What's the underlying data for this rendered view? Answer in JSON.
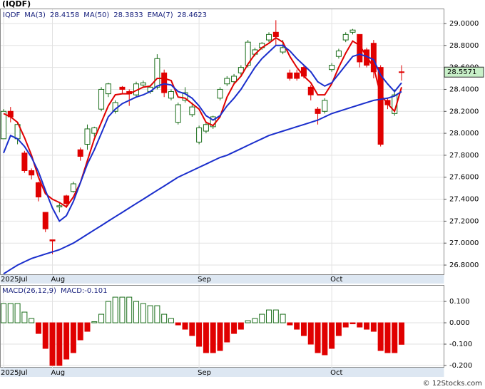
{
  "chart_data": [
    {
      "type": "candlestick",
      "title": "(IQDF)",
      "symbol": "IQDF",
      "legend": [
        {
          "name": "MA(3)",
          "value": "28.4158"
        },
        {
          "name": "MA(50)",
          "value": "28.3833"
        },
        {
          "name": "EMA(7)",
          "value": "28.4623"
        }
      ],
      "last_label": "28.5571",
      "categories": [
        "2025Jul",
        null,
        null,
        null,
        null,
        null,
        null,
        "Aug",
        null,
        null,
        null,
        null,
        null,
        null,
        null,
        null,
        null,
        null,
        null,
        null,
        null,
        null,
        null,
        null,
        null,
        null,
        null,
        null,
        "Sep",
        null,
        null,
        null,
        null,
        null,
        null,
        null,
        null,
        null,
        null,
        null,
        null,
        null,
        null,
        null,
        null,
        null,
        null,
        "Oct",
        null,
        null,
        null,
        null,
        null,
        null,
        null,
        null,
        null,
        null
      ],
      "open": [
        27.95,
        28.2,
        27.95,
        27.82,
        27.66,
        27.55,
        27.28,
        27.03,
        27.33,
        27.43,
        27.47,
        27.85,
        27.9,
        28.0,
        28.22,
        28.36,
        28.2,
        28.42,
        28.38,
        28.35,
        28.44,
        28.38,
        28.42,
        28.55,
        28.32,
        28.1,
        28.3,
        28.17,
        27.92,
        28.02,
        28.06,
        28.32,
        28.45,
        28.47,
        28.55,
        28.62,
        28.72,
        28.78,
        28.85,
        28.92,
        28.74,
        28.55,
        28.55,
        28.6,
        28.42,
        28.22,
        28.2,
        28.58,
        28.7,
        28.85,
        28.92,
        28.9,
        28.76,
        28.82,
        28.6,
        28.3,
        28.18,
        28.56
      ],
      "high": [
        28.22,
        28.24,
        28.1,
        27.84,
        27.68,
        27.56,
        27.28,
        27.03,
        27.37,
        27.44,
        27.56,
        27.87,
        28.08,
        28.06,
        28.42,
        28.46,
        28.3,
        28.43,
        28.4,
        28.47,
        28.48,
        28.44,
        28.72,
        28.58,
        28.4,
        28.28,
        28.42,
        28.28,
        28.07,
        28.1,
        28.16,
        28.42,
        28.52,
        28.54,
        28.62,
        28.85,
        28.78,
        28.83,
        28.92,
        29.03,
        28.85,
        28.58,
        28.58,
        28.62,
        28.44,
        28.24,
        28.32,
        28.64,
        28.77,
        28.92,
        28.95,
        28.9,
        28.78,
        28.85,
        28.62,
        28.32,
        28.4,
        28.62
      ],
      "low": [
        27.95,
        28.1,
        27.9,
        27.64,
        27.58,
        27.38,
        27.1,
        26.9,
        27.28,
        27.32,
        27.46,
        27.75,
        27.85,
        27.97,
        28.2,
        28.33,
        28.18,
        28.36,
        28.25,
        28.33,
        28.42,
        28.36,
        28.4,
        28.33,
        28.3,
        28.08,
        28.28,
        28.15,
        27.9,
        28.0,
        28.04,
        28.3,
        28.43,
        28.45,
        28.53,
        28.6,
        28.7,
        28.76,
        28.83,
        28.8,
        28.72,
        28.48,
        28.48,
        28.5,
        28.3,
        28.08,
        28.18,
        28.56,
        28.68,
        28.83,
        28.9,
        28.6,
        28.6,
        28.5,
        27.88,
        28.22,
        28.16,
        28.48
      ],
      "close": [
        28.2,
        28.15,
        28.08,
        27.66,
        27.62,
        27.42,
        27.13,
        27.02,
        27.34,
        27.36,
        27.54,
        27.79,
        28.04,
        28.05,
        28.4,
        28.45,
        28.28,
        28.4,
        28.36,
        28.45,
        28.46,
        28.42,
        28.68,
        28.37,
        28.38,
        28.26,
        28.37,
        28.24,
        28.05,
        28.08,
        28.15,
        28.4,
        28.5,
        28.52,
        28.6,
        28.83,
        28.76,
        28.82,
        28.9,
        28.88,
        28.78,
        28.5,
        28.5,
        28.52,
        28.35,
        28.18,
        28.3,
        28.62,
        28.75,
        28.9,
        28.94,
        28.65,
        28.62,
        28.56,
        27.9,
        28.26,
        28.35,
        28.5571
      ],
      "up_color": "#1b6e1b",
      "down_color": "#e00000",
      "series": [
        {
          "name": "MA(3)",
          "color": "#e00000",
          "values": [
            28.18,
            28.15,
            28.1,
            27.96,
            27.8,
            27.6,
            27.45,
            27.4,
            27.37,
            27.33,
            27.42,
            27.55,
            27.75,
            27.95,
            28.1,
            28.25,
            28.35,
            28.36,
            28.36,
            28.39,
            28.42,
            28.43,
            28.5,
            28.5,
            28.48,
            28.33,
            28.32,
            28.27,
            28.22,
            28.1,
            28.07,
            28.15,
            28.33,
            28.45,
            28.52,
            28.63,
            28.72,
            28.78,
            28.82,
            28.87,
            28.83,
            28.7,
            28.6,
            28.52,
            28.46,
            28.35,
            28.35,
            28.45,
            28.6,
            28.73,
            28.84,
            28.8,
            28.7,
            28.6,
            28.35,
            28.27,
            28.2,
            28.42
          ]
        },
        {
          "name": "EMA(7)",
          "color": "#1a2ecc",
          "values": [
            27.82,
            27.98,
            27.95,
            27.88,
            27.78,
            27.65,
            27.48,
            27.32,
            27.2,
            27.25,
            27.38,
            27.55,
            27.72,
            27.85,
            28.0,
            28.15,
            28.22,
            28.27,
            28.3,
            28.33,
            28.35,
            28.38,
            28.43,
            28.45,
            28.44,
            28.38,
            28.36,
            28.32,
            28.25,
            28.16,
            28.12,
            28.16,
            28.25,
            28.32,
            28.4,
            28.5,
            28.6,
            28.68,
            28.74,
            28.8,
            28.8,
            28.75,
            28.68,
            28.62,
            28.56,
            28.47,
            28.43,
            28.46,
            28.54,
            28.62,
            28.7,
            28.72,
            28.7,
            28.67,
            28.53,
            28.45,
            28.38,
            28.46
          ]
        },
        {
          "name": "MA(50)",
          "color": "#1a2ecc",
          "values": [
            26.72,
            26.76,
            26.8,
            26.83,
            26.86,
            26.88,
            26.9,
            26.92,
            26.94,
            26.97,
            27.0,
            27.04,
            27.08,
            27.12,
            27.16,
            27.2,
            27.24,
            27.28,
            27.32,
            27.36,
            27.4,
            27.44,
            27.48,
            27.52,
            27.56,
            27.6,
            27.63,
            27.66,
            27.69,
            27.72,
            27.75,
            27.78,
            27.8,
            27.83,
            27.86,
            27.89,
            27.92,
            27.95,
            27.98,
            28.0,
            28.02,
            28.04,
            28.06,
            28.08,
            28.1,
            28.12,
            28.15,
            28.18,
            28.2,
            28.22,
            28.24,
            28.26,
            28.28,
            28.3,
            28.31,
            28.32,
            28.34,
            28.38
          ]
        }
      ],
      "ylim": [
        26.716,
        29.136
      ],
      "yticks": [
        {
          "value": 26.8,
          "label": "26.8000"
        },
        {
          "value": 27.0,
          "label": "27.0000"
        },
        {
          "value": 27.2,
          "label": "27.2000"
        },
        {
          "value": 27.4,
          "label": "27.4000"
        },
        {
          "value": 27.6,
          "label": "27.6000"
        },
        {
          "value": 27.8,
          "label": "27.8000"
        },
        {
          "value": 28.0,
          "label": "28.0000"
        },
        {
          "value": 28.2,
          "label": "28.2000"
        },
        {
          "value": 28.4,
          "label": "28.4000"
        },
        {
          "value": 28.6,
          "label": "28.6000"
        },
        {
          "value": 28.8,
          "label": "28.8000"
        },
        {
          "value": 29.0,
          "label": "29.0000"
        }
      ],
      "grid": true
    },
    {
      "type": "bar",
      "title": "MACD(26,12,9)",
      "subtitle": "MACD:-0.101",
      "categories": [
        "2025Jul",
        null,
        null,
        null,
        null,
        null,
        null,
        "Aug",
        null,
        null,
        null,
        null,
        null,
        null,
        null,
        null,
        null,
        null,
        null,
        null,
        null,
        null,
        null,
        null,
        null,
        null,
        null,
        null,
        "Sep",
        null,
        null,
        null,
        null,
        null,
        null,
        null,
        null,
        null,
        null,
        null,
        null,
        null,
        null,
        null,
        null,
        null,
        null,
        "Oct",
        null,
        null,
        null,
        null,
        null,
        null,
        null,
        null,
        null,
        null
      ],
      "values": [
        0.09,
        0.09,
        0.09,
        0.05,
        0.02,
        -0.05,
        -0.12,
        -0.2,
        -0.2,
        -0.17,
        -0.14,
        -0.08,
        -0.04,
        0.005,
        0.04,
        0.1,
        0.12,
        0.12,
        0.12,
        0.1,
        0.09,
        0.08,
        0.08,
        0.04,
        0.02,
        -0.01,
        -0.03,
        -0.06,
        -0.11,
        -0.14,
        -0.14,
        -0.13,
        -0.09,
        -0.05,
        -0.03,
        0.01,
        0.02,
        0.04,
        0.06,
        0.06,
        0.04,
        -0.01,
        -0.03,
        -0.06,
        -0.1,
        -0.14,
        -0.15,
        -0.12,
        -0.06,
        -0.02,
        -0.005,
        -0.02,
        -0.03,
        -0.04,
        -0.13,
        -0.14,
        -0.14,
        -0.101
      ],
      "up_color": "#1b6e1b",
      "down_color": "#e00000",
      "ylim": [
        -0.21,
        0.177
      ],
      "yticks": [
        {
          "value": -0.2,
          "label": "-0.200"
        },
        {
          "value": -0.1,
          "label": "-0.100"
        },
        {
          "value": 0,
          "label": "0.000"
        },
        {
          "value": 0.1,
          "label": "0.100"
        }
      ],
      "grid": true
    }
  ],
  "footer": "© 12Stocks.com"
}
